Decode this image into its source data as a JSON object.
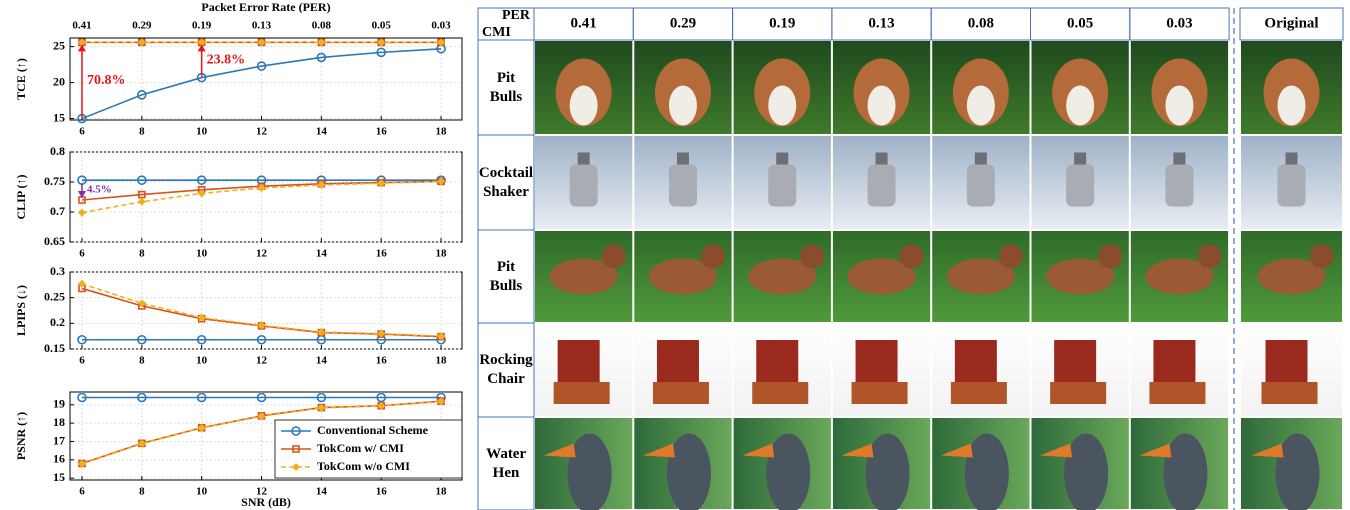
{
  "chart_data": [
    {
      "type": "line",
      "ylabel": "TCE (↑)",
      "x2label": "Packet Error Rate (PER)",
      "x2ticks": [
        "0.41",
        "0.29",
        "0.19",
        "0.13",
        "0.08",
        "0.05",
        "0.03"
      ],
      "x": [
        6,
        8,
        10,
        12,
        14,
        16,
        18
      ],
      "xlim": [
        5.6,
        18.7
      ],
      "xticks": [
        6,
        8,
        10,
        12,
        14,
        16,
        18
      ],
      "ylim": [
        14.8,
        26.2
      ],
      "yticks": [
        15,
        20,
        25
      ],
      "grid": true,
      "series": [
        {
          "color": "#2a78b8",
          "marker": "circle",
          "values": [
            15.0,
            18.3,
            20.7,
            22.3,
            23.5,
            24.2,
            24.7
          ]
        },
        {
          "color": "#d95319",
          "marker": "square",
          "values": [
            25.6,
            25.6,
            25.6,
            25.6,
            25.6,
            25.6,
            25.6
          ]
        },
        {
          "color": "#edb120",
          "marker": "diamond",
          "linestyle": "dashed",
          "values": [
            25.6,
            25.6,
            25.6,
            25.6,
            25.6,
            25.6,
            25.6
          ]
        }
      ],
      "annotations": [
        {
          "text": "70.8%",
          "color": "#e8141c"
        },
        {
          "text": "23.8%",
          "color": "#e8141c"
        }
      ]
    },
    {
      "type": "line",
      "ylabel": "CLIP (↑)",
      "x": [
        6,
        8,
        10,
        12,
        14,
        16,
        18
      ],
      "xlim": [
        5.6,
        18.7
      ],
      "xticks": [
        6,
        8,
        10,
        12,
        14,
        16,
        18
      ],
      "ylim": [
        0.65,
        0.8
      ],
      "yticks": [
        0.65,
        0.7,
        0.75,
        0.8
      ],
      "grid": true,
      "series": [
        {
          "color": "#2a78b8",
          "marker": "circle",
          "values": [
            0.753,
            0.753,
            0.753,
            0.753,
            0.753,
            0.753,
            0.753
          ]
        },
        {
          "color": "#d95319",
          "marker": "square",
          "values": [
            0.72,
            0.729,
            0.737,
            0.743,
            0.747,
            0.749,
            0.751
          ]
        },
        {
          "color": "#edb120",
          "marker": "diamond",
          "linestyle": "dashed",
          "values": [
            0.699,
            0.717,
            0.731,
            0.74,
            0.745,
            0.748,
            0.751
          ]
        }
      ],
      "annotations": [
        {
          "text": "4.5%",
          "color": "#7b2fa0"
        }
      ]
    },
    {
      "type": "line",
      "ylabel": "LPIPS (↓)",
      "x": [
        6,
        8,
        10,
        12,
        14,
        16,
        18
      ],
      "xlim": [
        5.6,
        18.7
      ],
      "xticks": [
        6,
        8,
        10,
        12,
        14,
        16,
        18
      ],
      "ylim": [
        0.15,
        0.3
      ],
      "yticks": [
        0.15,
        0.2,
        0.25,
        0.3
      ],
      "grid": true,
      "series": [
        {
          "color": "#2a78b8",
          "marker": "circle",
          "values": [
            0.168,
            0.168,
            0.168,
            0.168,
            0.168,
            0.168,
            0.168
          ]
        },
        {
          "color": "#d95319",
          "marker": "square",
          "values": [
            0.268,
            0.234,
            0.209,
            0.195,
            0.182,
            0.179,
            0.174
          ]
        },
        {
          "color": "#edb120",
          "marker": "diamond",
          "linestyle": "dashed",
          "values": [
            0.277,
            0.239,
            0.211,
            0.196,
            0.183,
            0.18,
            0.175
          ]
        }
      ]
    },
    {
      "type": "line",
      "ylabel": "PSNR (↑)",
      "xlabel": "SNR (dB)",
      "x": [
        6,
        8,
        10,
        12,
        14,
        16,
        18
      ],
      "xlim": [
        5.6,
        18.7
      ],
      "xticks": [
        6,
        8,
        10,
        12,
        14,
        16,
        18
      ],
      "ylim": [
        14.9,
        19.7
      ],
      "yticks": [
        15,
        16,
        17,
        18,
        19
      ],
      "grid": true,
      "legend": "lower right",
      "series": [
        {
          "name": "Conventional Scheme",
          "color": "#2a78b8",
          "marker": "circle",
          "values": [
            19.4,
            19.4,
            19.4,
            19.4,
            19.4,
            19.4,
            19.4
          ]
        },
        {
          "name": "TokCom w/ CMI",
          "color": "#d95319",
          "marker": "square",
          "values": [
            15.8,
            16.9,
            17.75,
            18.4,
            18.85,
            18.95,
            19.2
          ]
        },
        {
          "name": "TokCom w/o CMI",
          "color": "#edb120",
          "marker": "diamond",
          "linestyle": "dashed",
          "values": [
            15.78,
            16.88,
            17.74,
            18.38,
            18.83,
            18.95,
            19.18
          ]
        }
      ]
    }
  ],
  "image_grid": {
    "corner": [
      "PER",
      "CMI"
    ],
    "columns": [
      "0.41",
      "0.29",
      "0.19",
      "0.13",
      "0.08",
      "0.05",
      "0.03"
    ],
    "original": "Original",
    "rows": [
      "Pit Bulls",
      "Cocktail Shaker",
      "Pit Bulls",
      "Rocking Chair",
      "Water Hen"
    ]
  }
}
